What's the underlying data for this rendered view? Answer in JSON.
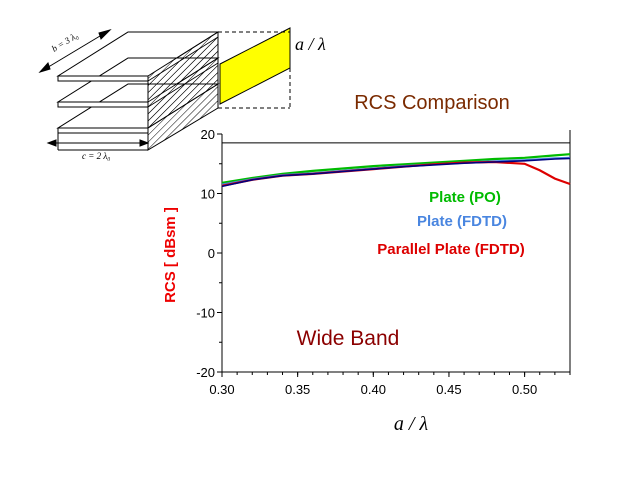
{
  "chart_data": {
    "type": "line",
    "title": "RCS Comparison",
    "annotation": "Wide Band",
    "xlabel": "a / λ",
    "ylabel": "RCS [ dBsm ]",
    "xlim": [
      0.3,
      0.53
    ],
    "ylim": [
      -20,
      20
    ],
    "xticks": [
      "0.30",
      "0.35",
      "0.40",
      "0.45",
      "0.50"
    ],
    "xtick_values": [
      0.3,
      0.35,
      0.4,
      0.45,
      0.5
    ],
    "yticks": [
      "-20",
      "-10",
      "0",
      "10",
      "20"
    ],
    "ytick_values": [
      -20,
      -10,
      0,
      10,
      20
    ],
    "reference_line_y": 18.5,
    "series": [
      {
        "name": "Plate (PO)",
        "color": "#00bb00",
        "x": [
          0.3,
          0.32,
          0.34,
          0.36,
          0.38,
          0.4,
          0.42,
          0.44,
          0.46,
          0.48,
          0.5,
          0.52,
          0.53
        ],
        "y": [
          11.8,
          12.6,
          13.3,
          13.8,
          14.2,
          14.6,
          14.9,
          15.2,
          15.5,
          15.8,
          16.0,
          16.4,
          16.6
        ]
      },
      {
        "name": "Plate (FDTD)",
        "color": "#4a86e0",
        "x": [
          0.3,
          0.32,
          0.34,
          0.36,
          0.38,
          0.4,
          0.42,
          0.44,
          0.46,
          0.48,
          0.5,
          0.52,
          0.53
        ],
        "y": [
          11.5,
          12.4,
          13.1,
          13.4,
          13.8,
          14.2,
          14.6,
          14.9,
          15.2,
          15.4,
          15.6,
          15.9,
          16.0
        ]
      },
      {
        "name": "Parallel Plate (FDTD)",
        "color": "#dd0000",
        "x": [
          0.3,
          0.32,
          0.34,
          0.36,
          0.38,
          0.4,
          0.42,
          0.44,
          0.46,
          0.48,
          0.5,
          0.51,
          0.52,
          0.53
        ],
        "y": [
          11.3,
          12.3,
          13.0,
          13.3,
          13.7,
          14.1,
          14.5,
          14.9,
          15.2,
          15.3,
          15.0,
          13.9,
          12.5,
          11.6
        ]
      }
    ],
    "dark_overlay_line": {
      "color": "#000080",
      "x": [
        0.3,
        0.32,
        0.34,
        0.36,
        0.38,
        0.4,
        0.42,
        0.44,
        0.46,
        0.48,
        0.5,
        0.52,
        0.53
      ],
      "y": [
        11.2,
        12.3,
        13.0,
        13.3,
        13.7,
        14.1,
        14.5,
        14.8,
        15.1,
        15.3,
        15.5,
        15.8,
        15.9
      ]
    }
  },
  "diagram": {
    "label_b": "b = 3 λ₀",
    "label_c": "c = 2 λ₀",
    "label_a": "a / λ",
    "plate_color": "#ffff00"
  }
}
